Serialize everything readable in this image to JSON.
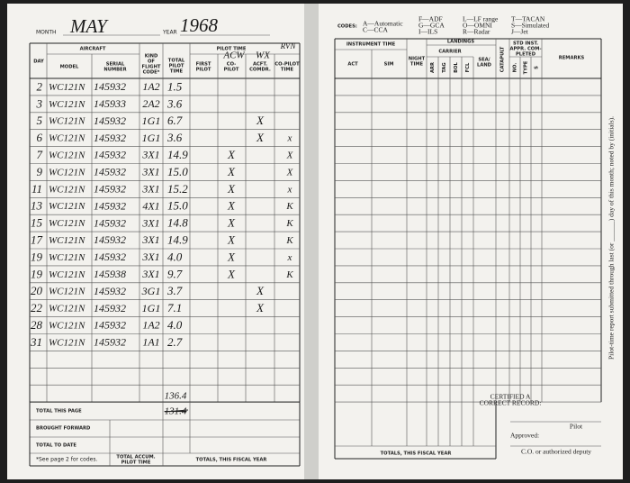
{
  "header": {
    "month_label": "MONTH",
    "month": "MAY",
    "year_label": "YEAR",
    "year": "1968"
  },
  "left": {
    "headers": {
      "day": "DAY",
      "aircraft": "AIRCRAFT",
      "model": "MODEL",
      "serial": [
        "SERIAL",
        "NUMBER"
      ],
      "kind": [
        "KIND",
        "OF",
        "FLIGHT",
        "CODE*"
      ],
      "total": [
        "TOTAL",
        "PILOT",
        "TIME"
      ],
      "pilot_time": "PILOT TIME",
      "first": [
        "FIRST",
        "PILOT"
      ],
      "copilot": [
        "CO-",
        "PILOT"
      ],
      "acft": [
        "ACFT.",
        "COMDR."
      ],
      "last": [
        "CO-PILOT",
        "TIME"
      ],
      "hand_acw": "ACW",
      "hand_wx": "WX",
      "hand_rvn": "RVN"
    },
    "rows": [
      {
        "day": "2",
        "model": "WC121N",
        "serial": "145932",
        "code": "1A2",
        "time": "1.5"
      },
      {
        "day": "3",
        "model": "WC121N",
        "serial": "145933",
        "code": "2A2",
        "time": "3.6"
      },
      {
        "day": "5",
        "model": "WC121N",
        "serial": "145932",
        "code": "1G1",
        "time": "6.7",
        "wx": "X"
      },
      {
        "day": "6",
        "model": "WC121N",
        "serial": "145932",
        "code": "1G1",
        "time": "3.6",
        "wx": "X",
        "rvn": "x"
      },
      {
        "day": "7",
        "model": "WC121N",
        "serial": "145932",
        "code": "3X1",
        "time": "14.9",
        "acw": "X",
        "rvn": "X"
      },
      {
        "day": "9",
        "model": "WC121N",
        "serial": "145932",
        "code": "3X1",
        "time": "15.0",
        "acw": "X",
        "rvn": "X"
      },
      {
        "day": "11",
        "model": "WC121N",
        "serial": "145932",
        "code": "3X1",
        "time": "15.2",
        "acw": "X",
        "rvn": "x"
      },
      {
        "day": "13",
        "model": "WC121N",
        "serial": "145932",
        "code": "4X1",
        "time": "15.0",
        "acw": "X",
        "rvn": "K"
      },
      {
        "day": "15",
        "model": "WC121N",
        "serial": "145932",
        "code": "3X1",
        "time": "14.8",
        "acw": "X",
        "rvn": "K"
      },
      {
        "day": "17",
        "model": "WC121N",
        "serial": "145932",
        "code": "3X1",
        "time": "14.9",
        "acw": "X",
        "rvn": "K"
      },
      {
        "day": "19",
        "model": "WC121N",
        "serial": "145932",
        "code": "3X1",
        "time": "4.0",
        "acw": "X",
        "rvn": "x"
      },
      {
        "day": "19",
        "model": "WC121N",
        "serial": "145938",
        "code": "3X1",
        "time": "9.7",
        "acw": "X",
        "rvn": "K"
      },
      {
        "day": "20",
        "model": "WC121N",
        "serial": "145932",
        "code": "3G1",
        "time": "3.7",
        "wx": "X"
      },
      {
        "day": "22",
        "model": "WC121N",
        "serial": "145932",
        "code": "1G1",
        "time": "7.1",
        "wx": "X"
      },
      {
        "day": "28",
        "model": "WC121N",
        "serial": "145932",
        "code": "1A2",
        "time": "4.0"
      },
      {
        "day": "31",
        "model": "WC121N",
        "serial": "145932",
        "code": "1A1",
        "time": "2.7"
      }
    ],
    "total_this_page": "TOTAL THIS PAGE",
    "total_value": "136.4",
    "total_struck": "131.4",
    "brought_forward": "BROUGHT FORWARD",
    "total_to_date": "TOTAL TO DATE",
    "footnote": "*See page 2 for codes.",
    "accum": [
      "TOTAL ACCUM.",
      "PILOT TIME"
    ],
    "fiscal": "TOTALS, THIS FISCAL YEAR"
  },
  "right": {
    "codes_label": "CODES:",
    "codes": [
      [
        "A—Automatic",
        "C—CCA"
      ],
      [
        "F—ADF",
        "G—GCA",
        "I—ILS"
      ],
      [
        "L—LF range",
        "O—OMNI",
        "R—Radar"
      ],
      [
        "T—TACAN",
        "S—Simulated",
        "J—Jet"
      ]
    ],
    "headers": {
      "instrument": "INSTRUMENT TIME",
      "act": "ACT",
      "sim": "SIM",
      "night": [
        "NIGHT",
        "TIME"
      ],
      "landings": "LANDINGS",
      "carrier": "CARRIER",
      "arr": "ARR",
      "tag": "TAG",
      "bol": "BOL",
      "fcl": "FCL",
      "sea": [
        "SEA/",
        "LAND"
      ],
      "catapult": "CATAPULT",
      "std": [
        "STD INST.",
        "APPR. COM-",
        "PLETED"
      ],
      "no": "NO.",
      "type": "TYPE",
      "s": "S",
      "remarks": "REMARKS"
    },
    "fiscal": "TOTALS, THIS FISCAL YEAR",
    "certified": [
      "CERTIFIED A",
      "CORRECT RECORD:"
    ],
    "pilot": "Pilot",
    "approved": "Approved:",
    "co": "C.O. or authorized deputy",
    "side_note": "Pilot-time report submitted through last (or ______) day of this month; noted by (initials)."
  }
}
